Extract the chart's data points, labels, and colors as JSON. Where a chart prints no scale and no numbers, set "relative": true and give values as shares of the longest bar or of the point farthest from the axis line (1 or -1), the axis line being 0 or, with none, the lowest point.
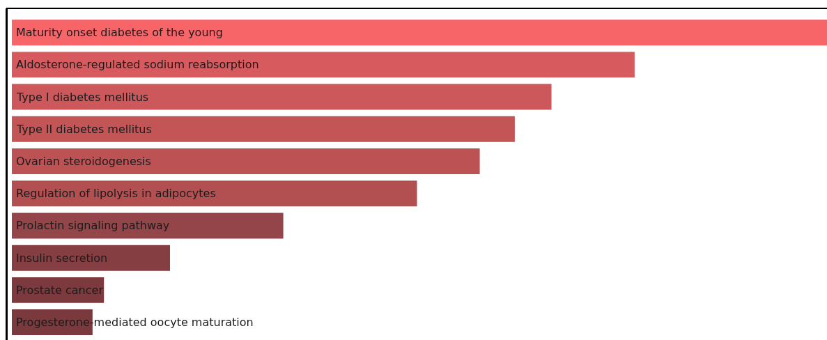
{
  "chart_data": {
    "type": "bar",
    "orientation": "horizontal",
    "relative": true,
    "categories": [
      "Maturity onset diabetes of the young",
      "Aldosterone-regulated sodium reabsorption",
      "Type I diabetes mellitus",
      "Type II diabetes mellitus",
      "Ovarian steroidogenesis",
      "Regulation of lipolysis in adipocytes",
      "Prolactin signaling pathway",
      "Insulin secretion",
      "Prostate cancer",
      "Progesterone-mediated oocyte maturation"
    ],
    "values": [
      1,
      0.764,
      0.662,
      0.617,
      0.574,
      0.497,
      0.333,
      0.194,
      0.113,
      0.099
    ],
    "colors": [
      "#f76569",
      "#d65a5e",
      "#cc585b",
      "#c45557",
      "#bc5254",
      "#b24f51",
      "#944549",
      "#853f42",
      "#7c3a3e",
      "#7a3a3d"
    ]
  }
}
